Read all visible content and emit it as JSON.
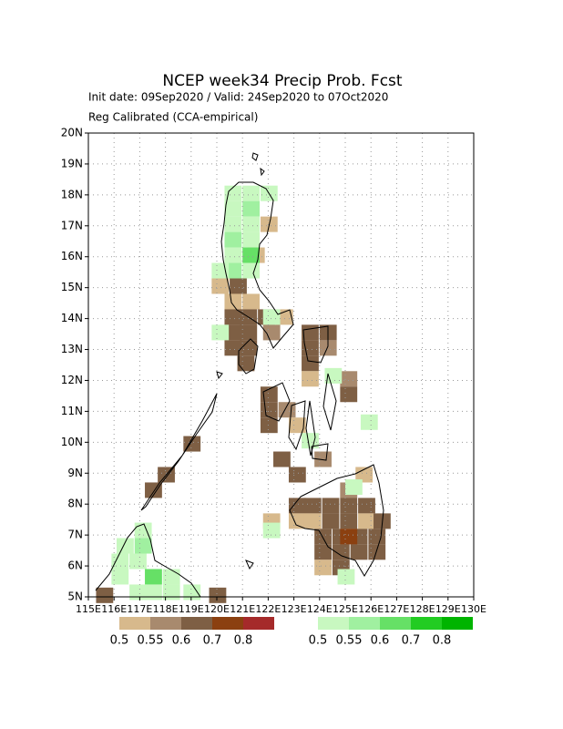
{
  "chart_data": {
    "type": "map",
    "title": "NCEP week34 Precip Prob. Fcst",
    "subtitle": "Init date: 09Sep2020 / Valid: 24Sep2020 to 07Oct2020",
    "note": "Reg Calibrated (CCA-empirical)",
    "xlim": [
      115,
      130
    ],
    "ylim": [
      5,
      20
    ],
    "xticks": [
      {
        "value": 115,
        "label": "115E"
      },
      {
        "value": 116,
        "label": "116E"
      },
      {
        "value": 117,
        "label": "117E"
      },
      {
        "value": 118,
        "label": "118E"
      },
      {
        "value": 119,
        "label": "119E"
      },
      {
        "value": 120,
        "label": "120E"
      },
      {
        "value": 121,
        "label": "121E"
      },
      {
        "value": 122,
        "label": "122E"
      },
      {
        "value": 123,
        "label": "123E"
      },
      {
        "value": 124,
        "label": "124E"
      },
      {
        "value": 125,
        "label": "125E"
      },
      {
        "value": 126,
        "label": "126E"
      },
      {
        "value": 127,
        "label": "127E"
      },
      {
        "value": 128,
        "label": "128E"
      },
      {
        "value": 129,
        "label": "129E"
      },
      {
        "value": 130,
        "label": "130E"
      }
    ],
    "yticks": [
      {
        "value": 5,
        "label": "5N"
      },
      {
        "value": 6,
        "label": "6N"
      },
      {
        "value": 7,
        "label": "7N"
      },
      {
        "value": 8,
        "label": "8N"
      },
      {
        "value": 9,
        "label": "9N"
      },
      {
        "value": 10,
        "label": "10N"
      },
      {
        "value": 11,
        "label": "11N"
      },
      {
        "value": 12,
        "label": "12N"
      },
      {
        "value": 13,
        "label": "13N"
      },
      {
        "value": 14,
        "label": "14N"
      },
      {
        "value": 15,
        "label": "15N"
      },
      {
        "value": 16,
        "label": "16N"
      },
      {
        "value": 17,
        "label": "17N"
      },
      {
        "value": 18,
        "label": "18N"
      },
      {
        "value": 19,
        "label": "19N"
      },
      {
        "value": 20,
        "label": "20N"
      }
    ],
    "grid": true,
    "dry_legend": {
      "ticks": [
        0.5,
        0.55,
        0.6,
        0.7,
        0.8
      ],
      "colors": [
        "#d7b98c",
        "#a88a6e",
        "#7e5f44",
        "#8b4010",
        "#a52a2a"
      ]
    },
    "wet_legend": {
      "ticks": [
        0.5,
        0.55,
        0.6,
        0.7,
        0.8
      ],
      "colors": [
        "#c8f8c0",
        "#a0f0a0",
        "#66e066",
        "#22cc22",
        "#00b400"
      ]
    },
    "dry_cells": [
      [
        121.7,
        17.3,
        0.5
      ],
      [
        121.2,
        16.3,
        0.5
      ],
      [
        119.8,
        15.3,
        0.5
      ],
      [
        120.5,
        15.3,
        0.6
      ],
      [
        120.3,
        14.8,
        0.5
      ],
      [
        121.0,
        14.8,
        0.5
      ],
      [
        120.3,
        14.3,
        0.6
      ],
      [
        120.9,
        14.3,
        0.6
      ],
      [
        121.6,
        14.3,
        0.6
      ],
      [
        122.3,
        14.3,
        0.5
      ],
      [
        120.3,
        13.8,
        0.6
      ],
      [
        120.9,
        13.8,
        0.6
      ],
      [
        121.8,
        13.8,
        0.55
      ],
      [
        120.3,
        13.3,
        0.6
      ],
      [
        120.9,
        13.3,
        0.6
      ],
      [
        120.8,
        12.8,
        0.6
      ],
      [
        123.3,
        13.8,
        0.6
      ],
      [
        124.0,
        13.8,
        0.6
      ],
      [
        123.3,
        13.3,
        0.6
      ],
      [
        124.0,
        13.3,
        0.55
      ],
      [
        123.3,
        12.8,
        0.6
      ],
      [
        123.3,
        12.3,
        0.5
      ],
      [
        124.8,
        12.3,
        0.55
      ],
      [
        121.7,
        11.8,
        0.6
      ],
      [
        124.8,
        11.8,
        0.6
      ],
      [
        121.7,
        11.3,
        0.6
      ],
      [
        122.4,
        11.3,
        0.55
      ],
      [
        121.7,
        10.8,
        0.6
      ],
      [
        122.8,
        10.8,
        0.5
      ],
      [
        122.2,
        9.7,
        0.6
      ],
      [
        123.8,
        9.7,
        0.55
      ],
      [
        122.8,
        9.2,
        0.6
      ],
      [
        125.4,
        9.2,
        0.5
      ],
      [
        124.8,
        8.7,
        0.55
      ],
      [
        122.8,
        8.2,
        0.6
      ],
      [
        123.4,
        8.2,
        0.6
      ],
      [
        124.1,
        8.2,
        0.6
      ],
      [
        124.8,
        8.2,
        0.6
      ],
      [
        125.5,
        8.2,
        0.6
      ],
      [
        121.8,
        7.7,
        0.5
      ],
      [
        122.8,
        7.7,
        0.5
      ],
      [
        123.4,
        7.7,
        0.5
      ],
      [
        124.1,
        7.7,
        0.6
      ],
      [
        124.8,
        7.7,
        0.6
      ],
      [
        125.5,
        7.7,
        0.5
      ],
      [
        126.1,
        7.7,
        0.6
      ],
      [
        123.8,
        7.2,
        0.6
      ],
      [
        124.5,
        7.2,
        0.6
      ],
      [
        125.2,
        7.2,
        0.6
      ],
      [
        125.9,
        7.2,
        0.6
      ],
      [
        123.8,
        6.7,
        0.6
      ],
      [
        124.5,
        6.7,
        0.6
      ],
      [
        125.2,
        6.7,
        0.6
      ],
      [
        125.9,
        6.7,
        0.6
      ],
      [
        123.8,
        6.2,
        0.5
      ],
      [
        124.5,
        6.2,
        0.6
      ],
      [
        117.2,
        8.7,
        0.6
      ],
      [
        117.7,
        9.2,
        0.6
      ],
      [
        118.7,
        10.2,
        0.6
      ],
      [
        115.3,
        5.3,
        0.6
      ],
      [
        119.7,
        5.3,
        0.6
      ],
      [
        124.8,
        7.2,
        0.7
      ]
    ],
    "wet_cells": [
      [
        120.3,
        18.3,
        0.5
      ],
      [
        121.0,
        18.3,
        0.5
      ],
      [
        121.7,
        18.3,
        0.5
      ],
      [
        120.3,
        17.8,
        0.5
      ],
      [
        121.0,
        17.8,
        0.55
      ],
      [
        120.3,
        17.3,
        0.5
      ],
      [
        121.0,
        17.3,
        0.5
      ],
      [
        120.3,
        16.8,
        0.55
      ],
      [
        121.0,
        16.8,
        0.5
      ],
      [
        120.3,
        16.3,
        0.5
      ],
      [
        121.0,
        16.3,
        0.6
      ],
      [
        120.3,
        15.8,
        0.55
      ],
      [
        121.0,
        15.8,
        0.5
      ],
      [
        119.8,
        15.8,
        0.5
      ],
      [
        119.8,
        13.8,
        0.5
      ],
      [
        121.8,
        14.3,
        0.5
      ],
      [
        124.2,
        12.4,
        0.5
      ],
      [
        125.6,
        10.9,
        0.5
      ],
      [
        123.3,
        10.3,
        0.5
      ],
      [
        125.0,
        8.8,
        0.5
      ],
      [
        121.8,
        7.4,
        0.5
      ],
      [
        124.7,
        5.9,
        0.5
      ],
      [
        116.8,
        7.4,
        0.5
      ],
      [
        116.1,
        6.9,
        0.5
      ],
      [
        116.8,
        6.9,
        0.55
      ],
      [
        115.9,
        6.4,
        0.5
      ],
      [
        116.6,
        6.4,
        0.5
      ],
      [
        117.2,
        5.9,
        0.6
      ],
      [
        117.9,
        5.9,
        0.5
      ],
      [
        115.9,
        5.9,
        0.5
      ],
      [
        116.6,
        5.4,
        0.5
      ],
      [
        117.2,
        5.4,
        0.5
      ],
      [
        117.9,
        5.4,
        0.5
      ],
      [
        118.7,
        5.4,
        0.5
      ]
    ]
  }
}
